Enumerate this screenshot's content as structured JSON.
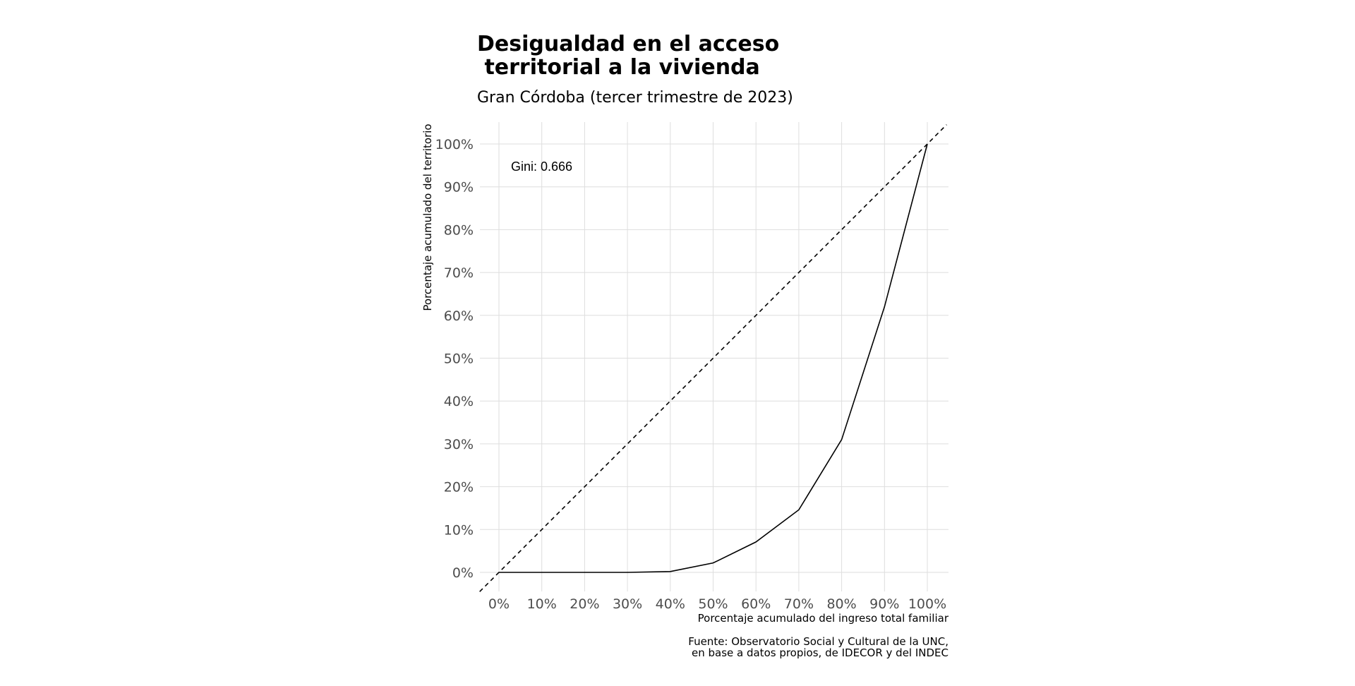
{
  "chart_data": {
    "type": "line",
    "title_line1": "Desigualdad en el acceso",
    "title_line2": " territorial a la vivienda",
    "subtitle": "Gran Córdoba (tercer trimestre de 2023)",
    "xlabel": "Porcentaje acumulado del ingreso total familiar",
    "ylabel": "Porcentaje acumulado del territorio",
    "caption_line1": "Fuente: Observatorio Social y Cultural de la UNC,",
    "caption_line2": "en base a datos propios, de IDECOR y del INDEC",
    "annotation": "Gini: 0.666",
    "xlim": [
      0,
      1
    ],
    "ylim": [
      0,
      1
    ],
    "x_ticks": [
      0,
      0.1,
      0.2,
      0.3,
      0.4,
      0.5,
      0.6,
      0.7,
      0.8,
      0.9,
      1.0
    ],
    "x_tick_labels": [
      "0%",
      "10%",
      "20%",
      "30%",
      "40%",
      "50%",
      "60%",
      "70%",
      "80%",
      "90%",
      "100%"
    ],
    "y_ticks": [
      0,
      0.1,
      0.2,
      0.3,
      0.4,
      0.5,
      0.6,
      0.7,
      0.8,
      0.9,
      1.0
    ],
    "y_tick_labels": [
      "0%",
      "10%",
      "20%",
      "30%",
      "40%",
      "50%",
      "60%",
      "70%",
      "80%",
      "90%",
      "100%"
    ],
    "grid": true,
    "series": [
      {
        "x": [
          0,
          0.1,
          0.2,
          0.3,
          0.4,
          0.5,
          0.6,
          0.7,
          0.8,
          0.9,
          1.0
        ],
        "y": [
          0,
          0,
          0,
          0,
          0.002,
          0.022,
          0.071,
          0.146,
          0.31,
          0.62,
          1.0
        ],
        "color": "#000000",
        "line_style": "solid"
      },
      {
        "x": [
          -0.045,
          1.045
        ],
        "y": [
          -0.045,
          1.045
        ],
        "color": "#000000",
        "line_style": "dashed"
      }
    ]
  }
}
